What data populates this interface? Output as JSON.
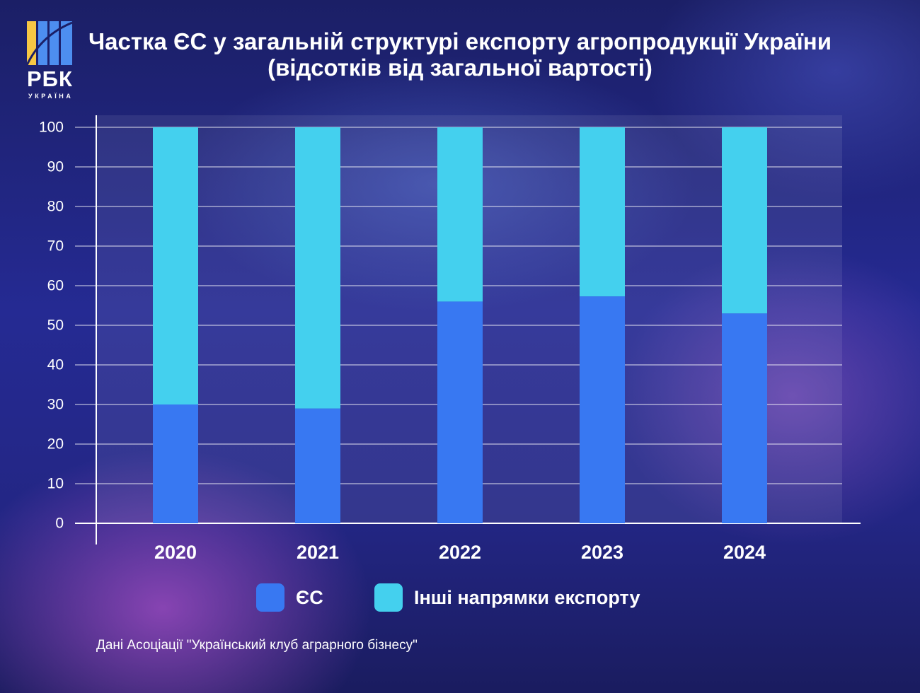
{
  "title": "Частка ЄС у загальній структурі експорту агропродукції України (відсотків від загальної вартості)",
  "logo": {
    "text": "РБК",
    "subtext": "УКРАЇНА"
  },
  "source": "Дані Асоціації \"Український клуб аграрного бізнесу\"",
  "colors": {
    "eu": "#3878f2",
    "other": "#44d0ee",
    "logo_yellow": "#f7c744",
    "logo_blue": "#4d8ef0"
  },
  "chart_data": {
    "type": "bar",
    "stacked": true,
    "categories": [
      "2020",
      "2021",
      "2022",
      "2023",
      "2024"
    ],
    "series": [
      {
        "name": "ЄС",
        "color": "#3878f2",
        "values": [
          30,
          29,
          56,
          57.3,
          53
        ]
      },
      {
        "name": "Інші напрямки експорту",
        "color": "#44d0ee",
        "values": [
          70,
          71,
          44,
          42.7,
          47
        ]
      }
    ],
    "ylim": [
      0,
      100
    ],
    "yticks": [
      0,
      10,
      20,
      30,
      40,
      50,
      60,
      70,
      80,
      90,
      100
    ],
    "grid": true,
    "legend_position": "bottom"
  }
}
